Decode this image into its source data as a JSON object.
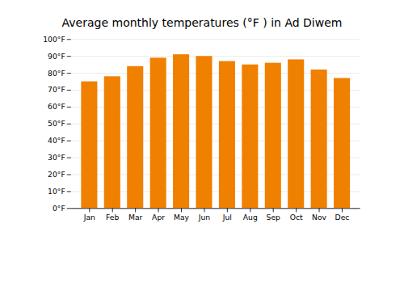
{
  "chart_data": {
    "type": "bar",
    "title": "Average monthly temperatures (°F ) in Ad Diwem",
    "categories": [
      "Jan",
      "Feb",
      "Mar",
      "Apr",
      "May",
      "Jun",
      "Jul",
      "Aug",
      "Sep",
      "Oct",
      "Nov",
      "Dec"
    ],
    "values": [
      75,
      78,
      84,
      89,
      91,
      90,
      87,
      85,
      86,
      88,
      82,
      77
    ],
    "color": "#F08000",
    "ylim": [
      0,
      100
    ],
    "yticks": [
      {
        "value": 0,
        "label": "0°F"
      },
      {
        "value": 10,
        "label": "10°F"
      },
      {
        "value": 20,
        "label": "20°F"
      },
      {
        "value": 30,
        "label": "30°F"
      },
      {
        "value": 40,
        "label": "40°F"
      },
      {
        "value": 50,
        "label": "50°F"
      },
      {
        "value": 60,
        "label": "60°F"
      },
      {
        "value": 70,
        "label": "70°F"
      },
      {
        "value": 80,
        "label": "80°F"
      },
      {
        "value": 90,
        "label": "90°F"
      },
      {
        "value": 100,
        "label": "100°F"
      }
    ],
    "grid": true
  }
}
